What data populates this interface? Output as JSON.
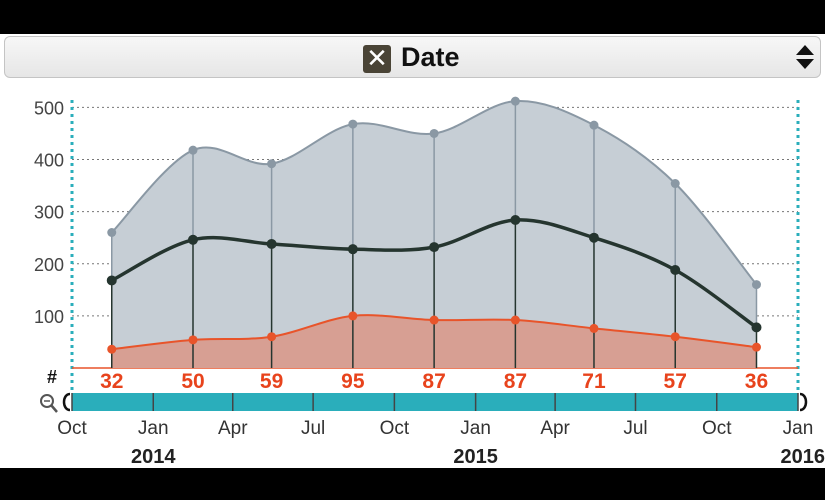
{
  "header": {
    "title": "Date",
    "close_icon": "close-icon",
    "sort_icon": "sort-arrows-icon"
  },
  "count_symbol": "#",
  "colors": {
    "total": "#8a98a4",
    "total_fill": "#c6ced5",
    "mid": "#25352f",
    "low": "#e8542a",
    "low_fill": "#d79f93",
    "brush": "#2aaebb",
    "count_text": "#e8431c"
  },
  "chart_data": {
    "type": "area",
    "x": [
      "2013-11-15",
      "2014-02-15",
      "2014-05-15",
      "2014-08-15",
      "2014-11-15",
      "2015-02-15",
      "2015-05-15",
      "2015-08-15",
      "2015-11-15"
    ],
    "series": [
      {
        "values": [
          260,
          418,
          392,
          468,
          450,
          512,
          466,
          354,
          160
        ]
      },
      {
        "values": [
          168,
          246,
          238,
          228,
          232,
          284,
          250,
          188,
          78
        ]
      },
      {
        "values": [
          36,
          54,
          60,
          100,
          92,
          92,
          76,
          60,
          40
        ]
      }
    ],
    "counts": [
      "32",
      "50",
      "59",
      "95",
      "87",
      "87",
      "71",
      "57",
      "36"
    ],
    "y_ticks": [
      "100",
      "200",
      "300",
      "400",
      "500"
    ],
    "y_tick_values": [
      100,
      200,
      300,
      400,
      500
    ],
    "ylim": [
      0,
      520
    ],
    "x_ticks": [
      {
        "date": "2013-10-01",
        "label": "Oct"
      },
      {
        "date": "2014-01-01",
        "label": "Jan"
      },
      {
        "date": "2014-04-01",
        "label": "Apr"
      },
      {
        "date": "2014-07-01",
        "label": "Jul"
      },
      {
        "date": "2014-10-01",
        "label": "Oct"
      },
      {
        "date": "2015-01-01",
        "label": "Jan"
      },
      {
        "date": "2015-04-01",
        "label": "Apr"
      },
      {
        "date": "2015-07-01",
        "label": "Jul"
      },
      {
        "date": "2015-10-01",
        "label": "Oct"
      },
      {
        "date": "2016-01-01",
        "label": "Jan"
      }
    ],
    "years": [
      {
        "date": "2014-01-01",
        "label": "2014"
      },
      {
        "date": "2015-01-01",
        "label": "2015"
      },
      {
        "date": "2016-01-01",
        "label": "2016"
      }
    ],
    "xlim": [
      "2013-10-01",
      "2016-01-01"
    ],
    "grid": true
  }
}
